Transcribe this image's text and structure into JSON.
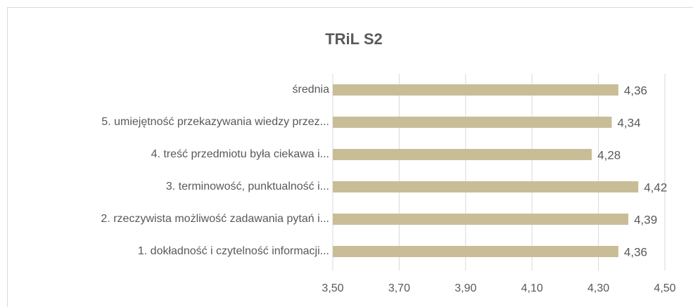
{
  "chart_data": {
    "type": "barh",
    "title": "TRiL S2",
    "categories": [
      "średnia",
      "5. umiejętność przekazywania wiedzy przez...",
      "4. treść przedmiotu była ciekawa i...",
      "3. terminowość, punktualność i...",
      "2. rzeczywista możliwość zadawania pytań i...",
      "1. dokładność i czytelność informacji..."
    ],
    "values": [
      4.36,
      4.34,
      4.28,
      4.42,
      4.39,
      4.36
    ],
    "value_labels": [
      "4,36",
      "4,34",
      "4,28",
      "4,42",
      "4,39",
      "4,36"
    ],
    "color": "#c9bd98",
    "xlim": [
      3.5,
      4.5
    ],
    "xticks": [
      {
        "value": 3.5,
        "label": "3,50"
      },
      {
        "value": 3.7,
        "label": "3,70"
      },
      {
        "value": 3.9,
        "label": "3,90"
      },
      {
        "value": 4.1,
        "label": "4,10"
      },
      {
        "value": 4.3,
        "label": "4,30"
      },
      {
        "value": 4.5,
        "label": "4,50"
      }
    ],
    "grid": true
  }
}
